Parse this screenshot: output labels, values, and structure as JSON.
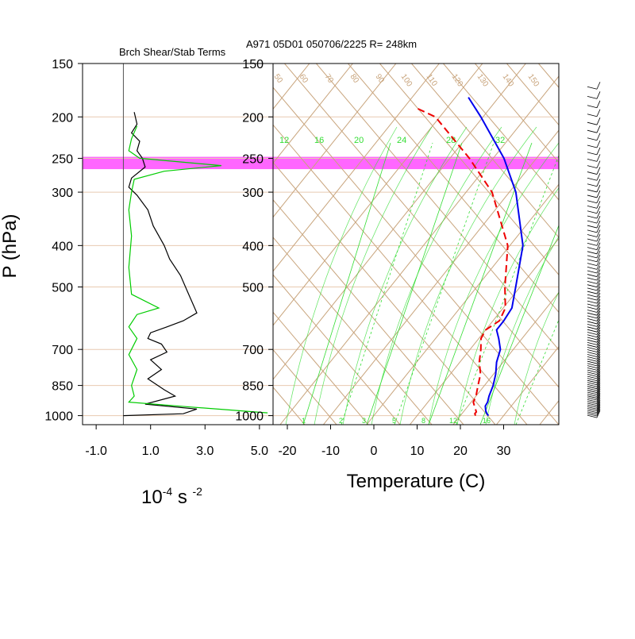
{
  "title": "A971 05D01 050706/2225 R= 248km",
  "left_panel_title": "Brch Shear/Stab Terms",
  "y_axis_label": "P (hPa)",
  "left_x_label": {
    "base": "10",
    "exp1": "-4",
    "mid": " s ",
    "exp2": "-2"
  },
  "right_x_label": "Temperature (C)",
  "pressure_ticks": [
    "150",
    "200",
    "250",
    "300",
    "400",
    "500",
    "700",
    "850",
    "1000"
  ],
  "pressure_values": [
    150,
    200,
    250,
    300,
    400,
    500,
    700,
    850,
    1000
  ],
  "left_x_ticks": [
    "-1.0",
    "1.0",
    "3.0",
    "5.0"
  ],
  "temp_ticks": [
    "-20",
    "-10",
    "0",
    "10",
    "20",
    "30"
  ],
  "theta_labels": [
    "50",
    "60",
    "70",
    "80",
    "90",
    "100",
    "110",
    "120",
    "130",
    "140",
    "150"
  ],
  "mixing_ratio_top_labels": [
    "12",
    "16",
    "20",
    "24",
    "28",
    "32"
  ],
  "mixing_ratio_bottom_labels": [
    "1",
    "2",
    "3",
    "5",
    "8",
    "12",
    "16"
  ],
  "colors": {
    "highlight": "#ff66ff",
    "temperature": "#0000ee",
    "dewpoint": "#ee0000",
    "shear": "#000000",
    "stability": "#00cc00",
    "dry_adiabats": "#c8a47c",
    "mixing_ratio": "#33dd33",
    "gridline": "#e8c9b0",
    "barbs": "#000000"
  },
  "chart_data": [
    {
      "type": "line",
      "panel": "shear/stability terms",
      "xlabel": "10^-4 s^-2",
      "ylabel": "P (hPa)",
      "xlim": [
        -1.5,
        5.5
      ],
      "ylim": [
        1000,
        150
      ],
      "highlight_band_hPa": [
        248,
        265
      ],
      "series": [
        {
          "name": "",
          "color": "#000000",
          "points": [
            [
              0.4,
              195
            ],
            [
              0.5,
              208
            ],
            [
              0.3,
              218
            ],
            [
              0.6,
              228
            ],
            [
              0.5,
              240
            ],
            [
              0.7,
              250
            ],
            [
              0.8,
              262
            ],
            [
              0.3,
              278
            ],
            [
              0.2,
              292
            ],
            [
              0.5,
              305
            ],
            [
              0.9,
              330
            ],
            [
              1.1,
              360
            ],
            [
              1.5,
              400
            ],
            [
              1.7,
              430
            ],
            [
              2.1,
              470
            ],
            [
              2.4,
              520
            ],
            [
              2.7,
              575
            ],
            [
              2.2,
              600
            ],
            [
              1.6,
              620
            ],
            [
              1.0,
              640
            ],
            [
              0.9,
              660
            ],
            [
              1.4,
              680
            ],
            [
              1.6,
              710
            ],
            [
              1.0,
              740
            ],
            [
              1.4,
              780
            ],
            [
              0.9,
              820
            ],
            [
              1.5,
              870
            ],
            [
              1.9,
              900
            ],
            [
              0.8,
              940
            ],
            [
              2.7,
              965
            ],
            [
              2.2,
              990
            ],
            [
              0.0,
              1000
            ]
          ]
        },
        {
          "name": "",
          "color": "#00cc00",
          "points": [
            [
              0.5,
              210
            ],
            [
              0.3,
              225
            ],
            [
              0.2,
              240
            ],
            [
              0.6,
              250
            ],
            [
              3.6,
              260
            ],
            [
              1.5,
              268
            ],
            [
              0.4,
              280
            ],
            [
              0.3,
              300
            ],
            [
              0.2,
              330
            ],
            [
              0.3,
              380
            ],
            [
              0.2,
              450
            ],
            [
              0.3,
              520
            ],
            [
              1.3,
              560
            ],
            [
              0.5,
              580
            ],
            [
              0.2,
              620
            ],
            [
              0.5,
              660
            ],
            [
              0.2,
              720
            ],
            [
              0.5,
              780
            ],
            [
              0.3,
              850
            ],
            [
              0.4,
              900
            ],
            [
              0.2,
              930
            ],
            [
              2.5,
              955
            ],
            [
              5.3,
              985
            ]
          ]
        }
      ]
    },
    {
      "type": "line",
      "panel": "skew-T",
      "xlabel": "Temperature (C)",
      "ylabel": "P (hPa)",
      "xlim": [
        -23,
        43
      ],
      "ylim": [
        1000,
        150
      ],
      "skewed": true,
      "series": [
        {
          "name": "",
          "color": "#0000ee",
          "style": "solid",
          "points": [
            [
              26.5,
              1000
            ],
            [
              25.8,
              990
            ],
            [
              25.0,
              975
            ],
            [
              24.0,
              950
            ],
            [
              23.8,
              930
            ],
            [
              23.0,
              900
            ],
            [
              22.0,
              850
            ],
            [
              20.5,
              800
            ],
            [
              18.5,
              750
            ],
            [
              17.0,
              700
            ],
            [
              14.6,
              660
            ],
            [
              12.5,
              630
            ],
            [
              12.5,
              600
            ],
            [
              12.0,
              560
            ],
            [
              9.0,
              500
            ],
            [
              3.0,
              400
            ],
            [
              -8.5,
              300
            ],
            [
              -17.5,
              250
            ],
            [
              -30.5,
              200
            ],
            [
              -37.0,
              180
            ]
          ]
        },
        {
          "name": "",
          "color": "#ee0000",
          "style": "dashed",
          "points": [
            [
              23.5,
              1000
            ],
            [
              23.0,
              990
            ],
            [
              23.0,
              980
            ],
            [
              21.5,
              950
            ],
            [
              20.5,
              930
            ],
            [
              20.0,
              900
            ],
            [
              18.5,
              850
            ],
            [
              17.0,
              800
            ],
            [
              14.5,
              750
            ],
            [
              12.5,
              700
            ],
            [
              10.5,
              660
            ],
            [
              10.0,
              630
            ],
            [
              11.5,
              600
            ],
            [
              10.5,
              560
            ],
            [
              6.5,
              500
            ],
            [
              -0.5,
              400
            ],
            [
              -14.0,
              300
            ],
            [
              -25.5,
              250
            ],
            [
              -41.0,
              200
            ],
            [
              -47.5,
              190
            ]
          ]
        }
      ],
      "wind_barbs": "present along right edge (values not readable)"
    }
  ]
}
